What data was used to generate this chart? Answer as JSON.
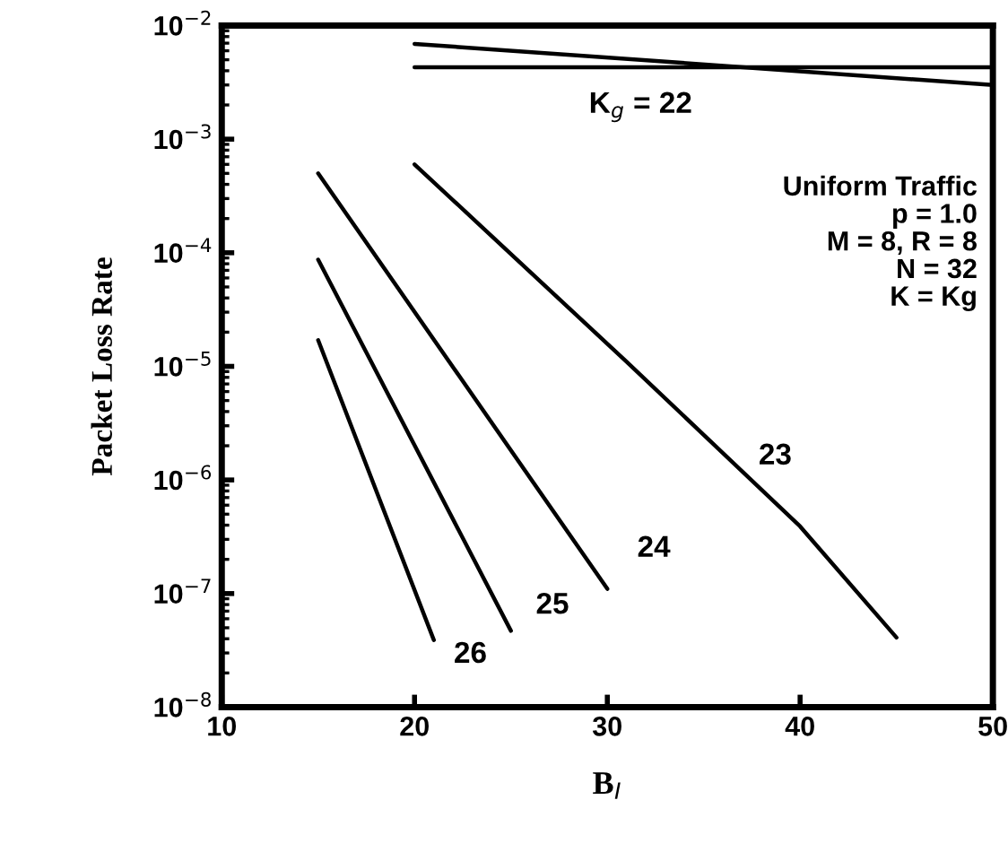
{
  "chart_data": {
    "type": "line",
    "xlabel": "B$_{I}$",
    "ylabel": "Packet Loss Rate",
    "log": "y",
    "xlim": [
      10,
      50
    ],
    "xticks": [
      10,
      20,
      30,
      40,
      50
    ],
    "ylim": [
      1e-08,
      0.01
    ],
    "yticks": [
      {
        "value": 1e-08,
        "label": "10$^{−8}$"
      },
      {
        "value": 1e-07,
        "label": "10$^{−7}$"
      },
      {
        "value": 1e-06,
        "label": "10$^{−6}$"
      },
      {
        "value": 1e-05,
        "label": "10$^{−5}$"
      },
      {
        "value": 0.0001,
        "label": "10$^{−4}$"
      },
      {
        "value": 0.001,
        "label": "10$^{−3}$"
      },
      {
        "value": 0.01,
        "label": "10$^{−2}$"
      }
    ],
    "grid": false,
    "legend": false,
    "marker": "none",
    "line_style": "solid",
    "series": [
      {
        "color": "#000000",
        "x": [
          20,
          50
        ],
        "values": [
          0.0069,
          0.003
        ]
      },
      {
        "name": "K$_{g}$ = 22",
        "color": "#000000",
        "x": [
          20,
          50
        ],
        "values": [
          0.0043,
          0.0043
        ]
      },
      {
        "name": "23",
        "color": "#000000",
        "x": [
          20,
          31,
          40,
          45
        ],
        "values": [
          0.0006,
          1.1e-05,
          3.9e-07,
          4.1e-08
        ]
      },
      {
        "name": "24",
        "color": "#000000",
        "x": [
          15,
          30
        ],
        "values": [
          0.0005,
          1.1e-07
        ]
      },
      {
        "name": "25",
        "color": "#000000",
        "x": [
          15,
          25
        ],
        "values": [
          8.7e-05,
          4.7e-08
        ]
      },
      {
        "name": "26",
        "color": "#000000",
        "x": [
          15,
          21
        ],
        "values": [
          1.7e-05,
          3.9e-08
        ]
      }
    ],
    "annotations": [
      "Uniform Traffic\np = 1.0\nM = 8, R = 8\nN = 32\nK = Kg"
    ]
  }
}
